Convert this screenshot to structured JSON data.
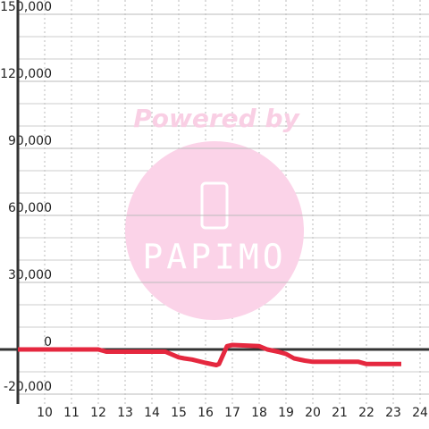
{
  "chart_data": {
    "type": "line",
    "watermark": [
      "Powered by",
      "PAPIMO"
    ],
    "x": [
      9,
      12,
      12.3,
      14.5,
      15,
      15.2,
      15.5,
      16,
      16.4,
      16.5,
      16.8,
      17,
      18,
      18.3,
      18.7,
      19,
      19.3,
      19.7,
      20,
      21,
      21.7,
      22,
      23.3
    ],
    "series": [
      {
        "color": "#e5283f",
        "values": [
          0,
          0,
          -1000,
          -1000,
          -3500,
          -4000,
          -4500,
          -6000,
          -7000,
          -6500,
          1500,
          2000,
          1500,
          0,
          -1000,
          -2000,
          -4000,
          -5000,
          -5500,
          -5500,
          -5500,
          -6500,
          -6500
        ]
      }
    ],
    "xlim": [
      9,
      24.3
    ],
    "ylim": [
      -20000,
      150000
    ],
    "xticks": [
      10,
      11,
      12,
      13,
      14,
      15,
      16,
      17,
      18,
      19,
      20,
      21,
      22,
      23,
      24
    ],
    "yticks": [
      {
        "value": 150000,
        "label": "150,000"
      },
      {
        "value": 120000,
        "label": "120,000"
      },
      {
        "value": 90000,
        "label": "90,000"
      },
      {
        "value": 60000,
        "label": "60,000"
      },
      {
        "value": 30000,
        "label": "30,000"
      },
      0,
      {
        "value": -20000,
        "label": "-20,000"
      }
    ],
    "yminorticks": [
      140000,
      130000,
      110000,
      100000,
      80000,
      70000,
      50000,
      40000,
      20000,
      10000,
      -10000
    ],
    "grid": true
  }
}
